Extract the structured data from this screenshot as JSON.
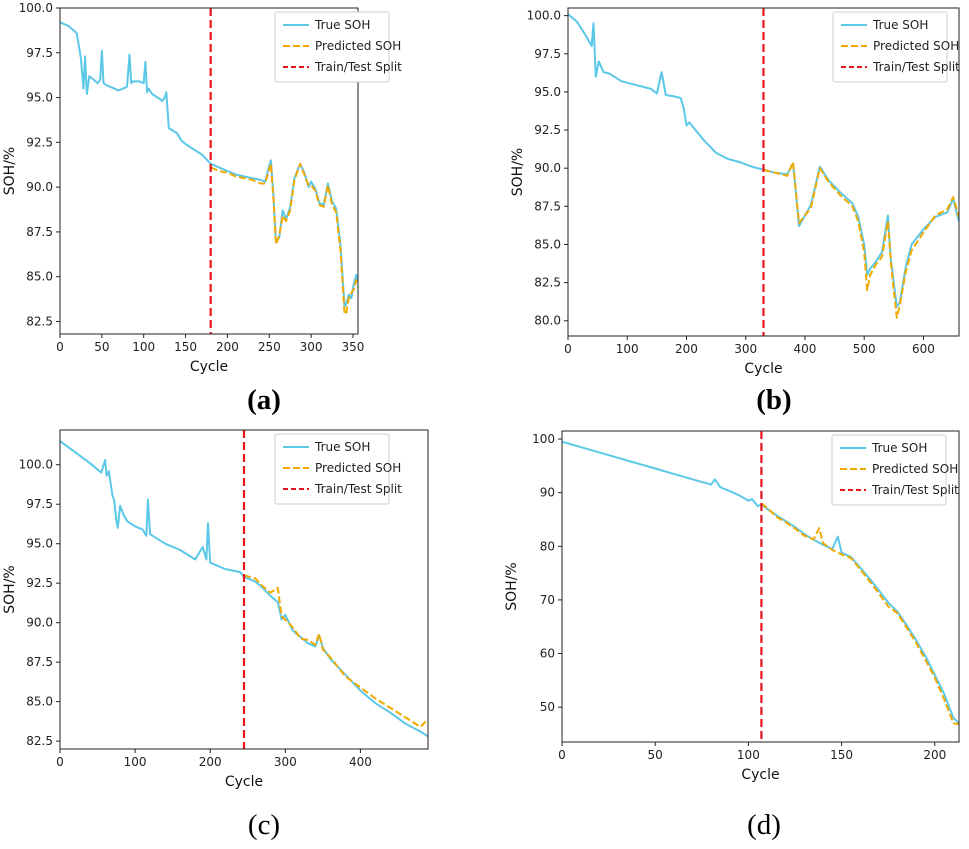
{
  "figure": {
    "panels": [
      {
        "label": "(a)",
        "bold": true
      },
      {
        "label": "(b)",
        "bold": true
      },
      {
        "label": "(c)",
        "bold": false
      },
      {
        "label": "(d)",
        "bold": false
      }
    ]
  },
  "colors": {
    "true": "#5bc8e8",
    "pred": "#f2a900",
    "split": "#e8161b"
  },
  "chart_data": [
    {
      "type": "line",
      "title": "(a)",
      "xlabel": "Cycle",
      "ylabel": "SOH/%",
      "xlim": [
        0,
        356
      ],
      "ylim": [
        81.8,
        100
      ],
      "xticks": [
        0,
        50,
        100,
        150,
        200,
        250,
        300,
        350
      ],
      "yticks": [
        82.5,
        85.0,
        87.5,
        90.0,
        92.5,
        95.0,
        97.5,
        100.0
      ],
      "split": 180,
      "legend": [
        "True SOH",
        "Predicted SOH",
        "Train/Test Split"
      ],
      "series": [
        {
          "name": "True SOH",
          "x": [
            0,
            10,
            20,
            25,
            28,
            30,
            32,
            35,
            40,
            45,
            48,
            50,
            52,
            55,
            60,
            70,
            80,
            83,
            85,
            87,
            90,
            95,
            100,
            102,
            104,
            106,
            110,
            120,
            122,
            125,
            127,
            130,
            140,
            145,
            150,
            160,
            170,
            180,
            190,
            200,
            210,
            220,
            230,
            240,
            245,
            250,
            252,
            255,
            258,
            262,
            266,
            270,
            275,
            280,
            287,
            292,
            297,
            300,
            305,
            310,
            315,
            320,
            325,
            330,
            335,
            340,
            342,
            345,
            348,
            351,
            354,
            356
          ],
          "y": [
            99.2,
            99.0,
            98.6,
            97.2,
            95.5,
            97.3,
            95.2,
            96.2,
            96.0,
            95.8,
            96.0,
            97.6,
            95.8,
            95.7,
            95.6,
            95.4,
            95.6,
            97.4,
            95.8,
            95.9,
            95.9,
            95.9,
            95.8,
            97.0,
            95.3,
            95.5,
            95.2,
            94.9,
            94.8,
            95.0,
            95.3,
            93.3,
            93.0,
            92.6,
            92.4,
            92.1,
            91.8,
            91.3,
            91.1,
            90.9,
            90.7,
            90.6,
            90.5,
            90.4,
            90.3,
            91.2,
            91.5,
            89.5,
            86.9,
            87.2,
            88.7,
            88.2,
            88.9,
            90.5,
            91.3,
            90.8,
            90.0,
            90.3,
            89.9,
            89.1,
            89.0,
            90.2,
            89.2,
            88.8,
            86.8,
            83.3,
            83.5,
            84.0,
            83.8,
            84.6,
            85.1,
            84.7
          ]
        },
        {
          "name": "Predicted SOH",
          "x": [
            180,
            190,
            200,
            210,
            220,
            230,
            240,
            245,
            250,
            252,
            255,
            258,
            262,
            266,
            270,
            275,
            280,
            287,
            292,
            297,
            300,
            305,
            310,
            315,
            320,
            325,
            330,
            335,
            340,
            342,
            345,
            348,
            351,
            354,
            356
          ],
          "y": [
            91.1,
            90.9,
            90.8,
            90.6,
            90.5,
            90.4,
            90.2,
            90.2,
            91.0,
            91.3,
            89.3,
            86.8,
            87.3,
            88.4,
            88.1,
            88.7,
            90.4,
            91.3,
            90.7,
            90.1,
            90.1,
            89.8,
            89.0,
            88.9,
            90.1,
            89.0,
            88.6,
            86.5,
            82.9,
            83.0,
            83.8,
            84.1,
            84.3,
            84.8,
            84.5
          ]
        }
      ]
    },
    {
      "type": "line",
      "title": "(b)",
      "xlabel": "Cycle",
      "ylabel": "SOH/%",
      "xlim": [
        0,
        660
      ],
      "ylim": [
        79,
        100.5
      ],
      "xticks": [
        0,
        100,
        200,
        300,
        400,
        500,
        600
      ],
      "yticks": [
        80.0,
        82.5,
        85.0,
        87.5,
        90.0,
        92.5,
        95.0,
        97.5,
        100.0
      ],
      "split": 330,
      "legend": [
        "True SOH",
        "Predicted SOH",
        "Train/Test Split"
      ],
      "series": [
        {
          "name": "True SOH",
          "x": [
            0,
            15,
            30,
            40,
            43,
            47,
            52,
            60,
            70,
            90,
            110,
            140,
            150,
            158,
            165,
            180,
            190,
            195,
            200,
            205,
            215,
            230,
            250,
            270,
            290,
            310,
            330,
            350,
            370,
            380,
            390,
            410,
            425,
            440,
            460,
            480,
            490,
            500,
            505,
            510,
            520,
            530,
            540,
            545,
            550,
            555,
            560,
            570,
            580,
            600,
            620,
            640,
            650,
            660
          ],
          "y": [
            100.1,
            99.6,
            98.7,
            98.0,
            99.5,
            96.0,
            97.0,
            96.3,
            96.2,
            95.7,
            95.5,
            95.2,
            94.9,
            96.3,
            94.8,
            94.7,
            94.6,
            94.0,
            92.8,
            93.0,
            92.5,
            91.8,
            91.0,
            90.6,
            90.4,
            90.1,
            89.9,
            89.7,
            89.6,
            90.3,
            86.2,
            87.6,
            90.1,
            89.2,
            88.4,
            87.7,
            86.8,
            85.0,
            83.0,
            83.4,
            83.9,
            84.5,
            86.9,
            84.0,
            82.5,
            80.9,
            81.2,
            83.5,
            85.0,
            86.0,
            86.8,
            87.1,
            88.0,
            86.5
          ]
        },
        {
          "name": "Predicted SOH",
          "x": [
            330,
            350,
            370,
            380,
            390,
            410,
            425,
            440,
            460,
            480,
            490,
            500,
            505,
            510,
            520,
            530,
            540,
            545,
            550,
            555,
            560,
            570,
            580,
            600,
            620,
            640,
            650,
            660
          ],
          "y": [
            89.9,
            89.7,
            89.5,
            90.4,
            86.4,
            87.4,
            90.0,
            89.1,
            88.2,
            87.5,
            86.5,
            84.5,
            82.0,
            83.0,
            83.7,
            84.2,
            86.5,
            83.8,
            82.0,
            80.2,
            81.0,
            83.2,
            84.6,
            85.8,
            86.9,
            87.3,
            88.1,
            86.8
          ]
        }
      ]
    },
    {
      "type": "line",
      "title": "(c)",
      "xlabel": "Cycle",
      "ylabel": "SOH/%",
      "xlim": [
        0,
        490
      ],
      "ylim": [
        82,
        102.2
      ],
      "xticks": [
        0,
        100,
        200,
        300,
        400
      ],
      "yticks": [
        82.5,
        85.0,
        87.5,
        90.0,
        92.5,
        95.0,
        97.5,
        100.0
      ],
      "split": 245,
      "legend": [
        "True SOH",
        "Predicted SOH",
        "Train/Test Split"
      ],
      "series": [
        {
          "name": "True SOH",
          "x": [
            0,
            20,
            40,
            55,
            60,
            62,
            65,
            70,
            72,
            75,
            77,
            80,
            85,
            90,
            100,
            110,
            115,
            117,
            120,
            140,
            160,
            180,
            190,
            195,
            197,
            200,
            220,
            240,
            245,
            260,
            270,
            280,
            290,
            295,
            300,
            310,
            320,
            330,
            340,
            345,
            350,
            360,
            380,
            400,
            420,
            440,
            460,
            480,
            490
          ],
          "y": [
            101.5,
            100.8,
            100.1,
            99.5,
            100.3,
            99.3,
            99.6,
            98.0,
            97.8,
            96.5,
            96.0,
            97.4,
            96.8,
            96.4,
            96.1,
            95.9,
            95.5,
            97.8,
            95.6,
            95.0,
            94.6,
            94.0,
            94.8,
            94.0,
            96.3,
            93.8,
            93.4,
            93.2,
            92.9,
            92.6,
            92.2,
            91.7,
            91.3,
            90.2,
            90.5,
            89.5,
            89.1,
            88.7,
            88.5,
            89.2,
            88.4,
            87.7,
            86.7,
            85.7,
            84.9,
            84.3,
            83.6,
            83.1,
            82.8
          ]
        },
        {
          "name": "Predicted SOH",
          "x": [
            245,
            260,
            270,
            280,
            290,
            295,
            300,
            310,
            320,
            330,
            340,
            345,
            350,
            360,
            380,
            400,
            420,
            440,
            460,
            480,
            490
          ],
          "y": [
            93.0,
            92.8,
            92.3,
            91.9,
            92.2,
            90.4,
            90.2,
            89.7,
            89.0,
            88.9,
            88.6,
            89.3,
            88.3,
            87.8,
            86.6,
            85.9,
            85.2,
            84.6,
            84.0,
            83.4,
            83.9
          ]
        }
      ]
    },
    {
      "type": "line",
      "title": "(d)",
      "xlabel": "Cycle",
      "ylabel": "SOH/%",
      "xlim": [
        0,
        213
      ],
      "ylim": [
        43.5,
        101.5
      ],
      "xticks": [
        0,
        50,
        100,
        150,
        200
      ],
      "yticks": [
        50,
        60,
        70,
        80,
        90,
        100
      ],
      "split": 107,
      "legend": [
        "True SOH",
        "Predicted SOH",
        "Train/Test Split"
      ],
      "series": [
        {
          "name": "True SOH",
          "x": [
            0,
            10,
            20,
            30,
            40,
            50,
            60,
            70,
            80,
            82,
            85,
            90,
            95,
            100,
            102,
            105,
            107,
            110,
            115,
            120,
            125,
            130,
            135,
            140,
            145,
            148,
            150,
            155,
            160,
            165,
            170,
            175,
            180,
            185,
            190,
            195,
            200,
            205,
            210,
            213
          ],
          "y": [
            99.5,
            98.5,
            97.5,
            96.5,
            95.5,
            94.5,
            93.5,
            92.5,
            91.5,
            92.5,
            91.0,
            90.3,
            89.5,
            88.5,
            88.8,
            87.5,
            87.8,
            87.0,
            85.8,
            84.7,
            83.6,
            82.3,
            81.2,
            80.3,
            79.5,
            81.8,
            78.8,
            78.0,
            76.0,
            74.0,
            71.8,
            69.5,
            67.8,
            65.2,
            62.5,
            59.5,
            56.0,
            52.5,
            48.0,
            47.0
          ]
        },
        {
          "name": "Predicted SOH",
          "x": [
            107,
            110,
            115,
            120,
            125,
            130,
            135,
            138,
            140,
            145,
            150,
            155,
            160,
            165,
            170,
            175,
            180,
            185,
            190,
            195,
            200,
            205,
            210,
            213
          ],
          "y": [
            88.0,
            87.2,
            85.5,
            84.5,
            83.3,
            82.0,
            81.3,
            83.4,
            80.6,
            79.3,
            78.5,
            77.8,
            75.7,
            73.5,
            71.2,
            68.8,
            67.5,
            64.8,
            62.0,
            58.8,
            55.5,
            51.5,
            47.0,
            46.8
          ]
        }
      ]
    }
  ]
}
